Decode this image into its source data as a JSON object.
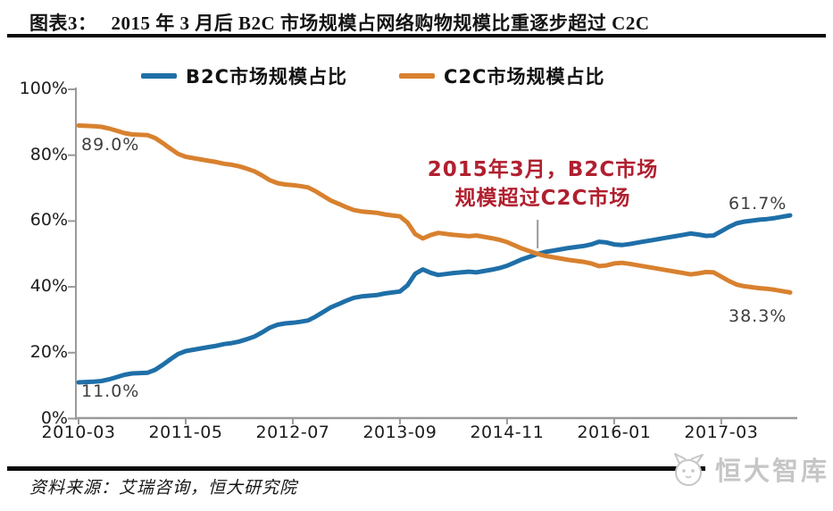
{
  "figure": {
    "label": "图表3：",
    "title": "2015 年 3 月后 B2C 市场规模占网络购物规模比重逐步超过 C2C"
  },
  "legend": [
    {
      "label": "B2C市场规模占比",
      "color": "#1F6FA8"
    },
    {
      "label": "C2C市场规模占比",
      "color": "#D8812F"
    }
  ],
  "chart_data": {
    "type": "line",
    "title": "2015 年 3 月后 B2C 市场规模占网络购物规模比重逐步超过 C2C",
    "x_unit": "month",
    "ylim": [
      0,
      100
    ],
    "grid": false,
    "legend_position": "top",
    "x": [
      "2010-03",
      "2010-04",
      "2010-05",
      "2010-06",
      "2010-07",
      "2010-08",
      "2010-09",
      "2010-10",
      "2010-11",
      "2010-12",
      "2011-01",
      "2011-02",
      "2011-03",
      "2011-04",
      "2011-05",
      "2011-06",
      "2011-07",
      "2011-08",
      "2011-09",
      "2011-10",
      "2011-11",
      "2011-12",
      "2012-01",
      "2012-02",
      "2012-03",
      "2012-04",
      "2012-05",
      "2012-06",
      "2012-07",
      "2012-08",
      "2012-09",
      "2012-10",
      "2012-11",
      "2012-12",
      "2013-01",
      "2013-02",
      "2013-03",
      "2013-04",
      "2013-05",
      "2013-06",
      "2013-07",
      "2013-08",
      "2013-09",
      "2013-10",
      "2013-11",
      "2013-12",
      "2014-01",
      "2014-02",
      "2014-03",
      "2014-04",
      "2014-05",
      "2014-06",
      "2014-07",
      "2014-08",
      "2014-09",
      "2014-10",
      "2014-11",
      "2014-12",
      "2015-01",
      "2015-02",
      "2015-03",
      "2015-04",
      "2015-05",
      "2015-06",
      "2015-07",
      "2015-08",
      "2015-09",
      "2015-10",
      "2015-11",
      "2015-12",
      "2016-01",
      "2016-02",
      "2016-03",
      "2016-04",
      "2016-05",
      "2016-06",
      "2016-07",
      "2016-08",
      "2016-09",
      "2016-10",
      "2016-11",
      "2016-12",
      "2017-01",
      "2017-02",
      "2017-03",
      "2017-04",
      "2017-05",
      "2017-06",
      "2017-07",
      "2017-08",
      "2017-09",
      "2017-10",
      "2017-11",
      "2017-12"
    ],
    "xticks": [
      "2010-03",
      "2011-05",
      "2012-07",
      "2013-09",
      "2014-11",
      "2016-01",
      "2017-03"
    ],
    "yticks_labels": [
      "100%",
      "80%",
      "60%",
      "40%",
      "20%",
      "0%"
    ],
    "ytick_values": [
      100,
      80,
      60,
      40,
      20,
      0
    ],
    "series": [
      {
        "name": "B2C市场规模占比",
        "color": "#1F6FA8",
        "values": [
          11.0,
          11.1,
          11.2,
          11.4,
          11.9,
          12.6,
          13.3,
          13.7,
          13.8,
          13.9,
          14.8,
          16.3,
          18.0,
          19.6,
          20.5,
          20.9,
          21.3,
          21.7,
          22.1,
          22.6,
          22.9,
          23.4,
          24.1,
          24.9,
          26.2,
          27.6,
          28.5,
          28.9,
          29.1,
          29.4,
          29.8,
          31.0,
          32.4,
          33.8,
          34.8,
          35.8,
          36.7,
          37.1,
          37.3,
          37.5,
          38.0,
          38.3,
          38.6,
          40.5,
          44.0,
          45.3,
          44.3,
          43.6,
          43.9,
          44.2,
          44.4,
          44.6,
          44.4,
          44.8,
          45.2,
          45.7,
          46.4,
          47.4,
          48.4,
          49.2,
          50.0,
          50.6,
          51.0,
          51.4,
          51.8,
          52.1,
          52.4,
          52.9,
          53.7,
          53.5,
          52.9,
          52.7,
          53.0,
          53.4,
          53.8,
          54.2,
          54.6,
          55.0,
          55.4,
          55.8,
          56.2,
          55.9,
          55.5,
          55.6,
          56.9,
          58.2,
          59.3,
          59.8,
          60.1,
          60.4,
          60.6,
          60.9,
          61.3,
          61.7
        ]
      },
      {
        "name": "C2C市场规模占比",
        "color": "#D8812F",
        "values": [
          89.0,
          88.9,
          88.8,
          88.6,
          88.1,
          87.4,
          86.7,
          86.3,
          86.2,
          86.1,
          85.2,
          83.7,
          82.0,
          80.4,
          79.5,
          79.1,
          78.7,
          78.3,
          77.9,
          77.4,
          77.1,
          76.6,
          75.9,
          75.1,
          73.8,
          72.4,
          71.5,
          71.1,
          70.9,
          70.6,
          70.2,
          69.0,
          67.6,
          66.2,
          65.2,
          64.2,
          63.3,
          62.9,
          62.7,
          62.5,
          62.0,
          61.7,
          61.4,
          59.5,
          56.0,
          54.7,
          55.7,
          56.4,
          56.1,
          55.8,
          55.6,
          55.4,
          55.6,
          55.2,
          54.8,
          54.3,
          53.6,
          52.6,
          51.6,
          50.8,
          50.0,
          49.4,
          49.0,
          48.6,
          48.2,
          47.9,
          47.6,
          47.1,
          46.3,
          46.5,
          47.1,
          47.3,
          47.0,
          46.6,
          46.2,
          45.8,
          45.4,
          45.0,
          44.6,
          44.2,
          43.8,
          44.1,
          44.5,
          44.4,
          43.1,
          41.8,
          40.7,
          40.2,
          39.9,
          39.6,
          39.4,
          39.1,
          38.7,
          38.3
        ]
      }
    ],
    "annotations": {
      "c2c_start": "89.0%",
      "b2c_start": "11.0%",
      "b2c_end": "61.7%",
      "c2c_end": "38.3%",
      "note_line1": "2015年3月，B2C市场",
      "note_line2": "规模超过C2C市场",
      "note_color": "#B0202F",
      "note_points_to": "2015-03"
    },
    "axis_color": "#9a9a9a"
  },
  "source": {
    "text": "资料来源：艾瑞咨询，恒大研究院"
  },
  "logo": {
    "text": "恒大智库"
  }
}
